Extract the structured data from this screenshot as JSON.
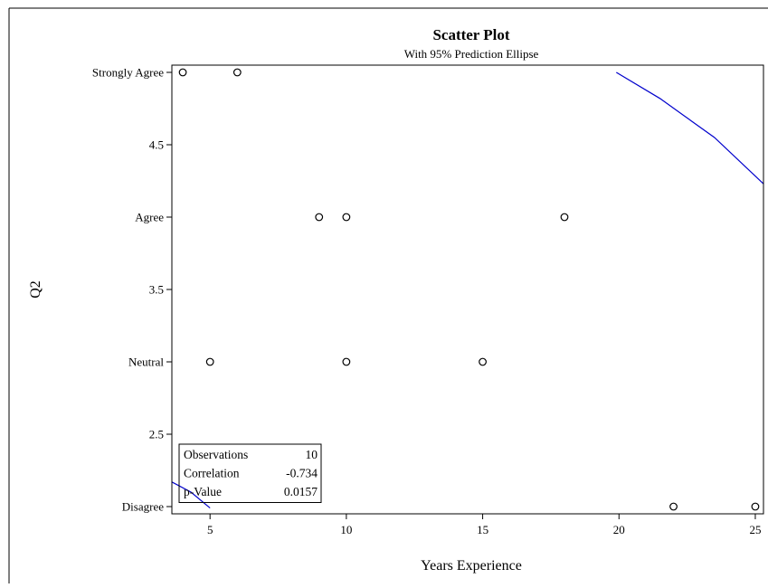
{
  "chart_data": {
    "type": "scatter",
    "title": "Scatter Plot",
    "subtitle": "With 95% Prediction Ellipse",
    "xlabel": "Years Experience",
    "ylabel": "Q2",
    "xlim": [
      3.6,
      25.3
    ],
    "ylim": [
      1.95,
      5.05
    ],
    "x_ticks": [
      5,
      10,
      15,
      20,
      25
    ],
    "y_ticks": [
      {
        "value": 5,
        "label": "Strongly Agree"
      },
      {
        "value": 4.5,
        "label": "4.5"
      },
      {
        "value": 4,
        "label": "Agree"
      },
      {
        "value": 3.5,
        "label": "3.5"
      },
      {
        "value": 3,
        "label": "Neutral"
      },
      {
        "value": 2.5,
        "label": "2.5"
      },
      {
        "value": 2,
        "label": "Disagree"
      }
    ],
    "points": [
      {
        "x": 4,
        "y": 5
      },
      {
        "x": 6,
        "y": 5
      },
      {
        "x": 9,
        "y": 4
      },
      {
        "x": 10,
        "y": 4
      },
      {
        "x": 18,
        "y": 4
      },
      {
        "x": 5,
        "y": 3
      },
      {
        "x": 10,
        "y": 3
      },
      {
        "x": 15,
        "y": 3
      },
      {
        "x": 22,
        "y": 2
      },
      {
        "x": 25,
        "y": 2
      }
    ],
    "ellipse_segments": [
      [
        [
          19.9,
          5.0
        ],
        [
          21.5,
          4.82
        ],
        [
          23.5,
          4.55
        ],
        [
          25.3,
          4.23
        ]
      ],
      [
        [
          3.6,
          2.17
        ],
        [
          4.3,
          2.1
        ],
        [
          5.0,
          1.99
        ]
      ]
    ],
    "ellipse_color": "#0000cc",
    "grid": false,
    "stats": [
      {
        "label": "Observations",
        "value": "10"
      },
      {
        "label": "Correlation",
        "value": "-0.734"
      },
      {
        "label": "p-Value",
        "value": "0.0157"
      }
    ]
  }
}
